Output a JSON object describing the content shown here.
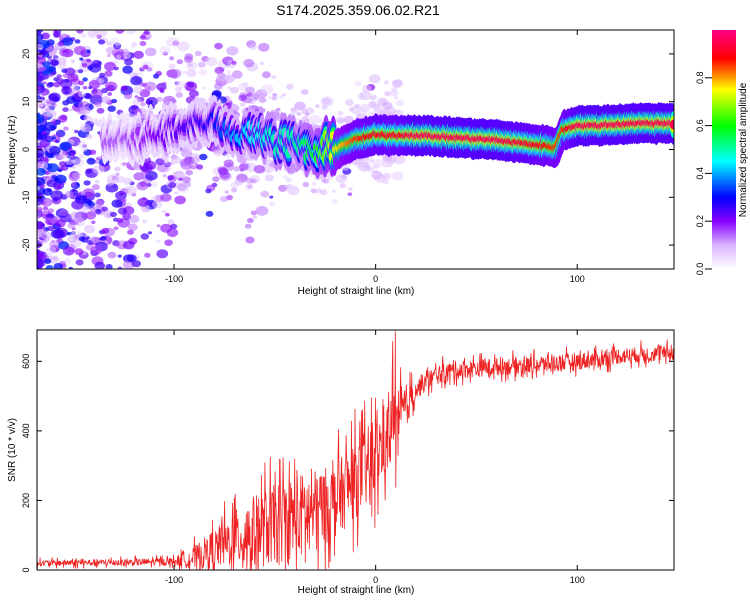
{
  "title": "S174.2025.359.06.02.R21",
  "chart_data": [
    {
      "type": "heatmap",
      "name": "spectrogram",
      "xlabel": "Height of straight line (km)",
      "ylabel": "Frequency (Hz)",
      "xlim": [
        -168,
        148
      ],
      "ylim": [
        -25,
        25
      ],
      "xticks": [
        -100,
        0,
        100
      ],
      "yticks": [
        -20,
        -10,
        0,
        10,
        20
      ],
      "colorbar": {
        "label": "Normalized spectral amplitude",
        "range": [
          0,
          1
        ],
        "ticks": [
          "0.0",
          "0.2",
          "0.4",
          "0.6",
          "0.8"
        ],
        "tick_values": [
          0.0,
          0.2,
          0.4,
          0.6,
          0.8
        ],
        "colors": [
          "#ffffff",
          "#8800ff",
          "#0000ff",
          "#00ffff",
          "#00ff00",
          "#ffff00",
          "#ff0000",
          "#ff00aa"
        ]
      },
      "ridge": {
        "x": [
          -125,
          -110,
          -90,
          -80,
          -70,
          -60,
          -50,
          -40,
          -30,
          -20,
          -10,
          0,
          10,
          20,
          40,
          60,
          80,
          90,
          93,
          100,
          110,
          130,
          148
        ],
        "y": [
          2,
          3,
          5,
          6,
          4,
          3,
          2,
          1,
          -0.5,
          0,
          2,
          3,
          3,
          3,
          2.5,
          2,
          1,
          0.5,
          4,
          5,
          5,
          5.5,
          5.5
        ],
        "amplitude": [
          0.15,
          0.2,
          0.25,
          0.3,
          0.4,
          0.45,
          0.5,
          0.5,
          0.6,
          0.75,
          0.85,
          0.9,
          0.9,
          0.95,
          0.95,
          0.95,
          0.9,
          0.85,
          0.85,
          0.95,
          0.95,
          0.95,
          0.95
        ]
      }
    },
    {
      "type": "line",
      "name": "snr",
      "xlabel": "Height of straight line (km)",
      "ylabel": "SNR (10 * v/v)",
      "xlim": [
        -168,
        148
      ],
      "ylim": [
        0,
        690
      ],
      "xticks": [
        -100,
        0,
        100
      ],
      "yticks": [
        0,
        200,
        400,
        600
      ],
      "color": "#ee2222",
      "trend": {
        "x": [
          -168,
          -120,
          -100,
          -90,
          -80,
          -70,
          -60,
          -50,
          -40,
          -30,
          -20,
          -10,
          0,
          5,
          10,
          15,
          20,
          30,
          40,
          60,
          80,
          100,
          110,
          120,
          148
        ],
        "y": [
          20,
          22,
          25,
          35,
          60,
          90,
          110,
          130,
          150,
          170,
          200,
          260,
          320,
          380,
          420,
          470,
          520,
          560,
          575,
          585,
          590,
          600,
          605,
          615,
          625
        ]
      },
      "noise": {
        "x": [
          -168,
          -100,
          -80,
          -60,
          -40,
          -20,
          0,
          10,
          20,
          60,
          100,
          148
        ],
        "amplitude": [
          12,
          15,
          80,
          150,
          180,
          150,
          170,
          140,
          40,
          35,
          35,
          30
        ]
      }
    }
  ]
}
